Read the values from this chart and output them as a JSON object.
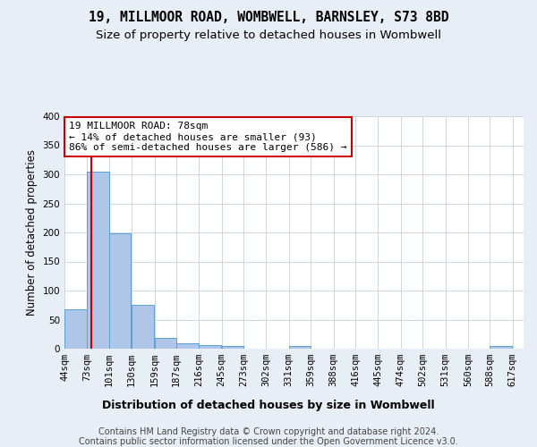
{
  "title_line1": "19, MILLMOOR ROAD, WOMBWELL, BARNSLEY, S73 8BD",
  "title_line2": "Size of property relative to detached houses in Wombwell",
  "xlabel": "Distribution of detached houses by size in Wombwell",
  "ylabel": "Number of detached properties",
  "bar_color": "#aec6e8",
  "bar_edge_color": "#5a9fd4",
  "property_line_color": "#cc0000",
  "annotation_text": "19 MILLMOOR ROAD: 78sqm\n← 14% of detached houses are smaller (93)\n86% of semi-detached houses are larger (586) →",
  "annotation_box_color": "#ffffff",
  "annotation_box_edge_color": "#cc0000",
  "footer_text": "Contains HM Land Registry data © Crown copyright and database right 2024.\nContains public sector information licensed under the Open Government Licence v3.0.",
  "background_color": "#e8eef5",
  "plot_background_color": "#ffffff",
  "grid_color": "#c8d0dc",
  "categories": [
    "44sqm",
    "73sqm",
    "101sqm",
    "130sqm",
    "159sqm",
    "187sqm",
    "216sqm",
    "245sqm",
    "273sqm",
    "302sqm",
    "331sqm",
    "359sqm",
    "388sqm",
    "416sqm",
    "445sqm",
    "474sqm",
    "502sqm",
    "531sqm",
    "560sqm",
    "588sqm",
    "617sqm"
  ],
  "values": [
    68,
    305,
    199,
    76,
    19,
    10,
    6,
    5,
    0,
    0,
    5,
    0,
    0,
    0,
    0,
    0,
    0,
    0,
    0,
    4,
    0
  ],
  "property_sqm": 78,
  "xlim_left": 44,
  "xlim_right": 631,
  "ylim": [
    0,
    400
  ],
  "bin_width": 29,
  "title_fontsize": 10.5,
  "subtitle_fontsize": 9.5,
  "axis_label_fontsize": 8.5,
  "tick_fontsize": 7.5,
  "annotation_fontsize": 8,
  "footer_fontsize": 7
}
